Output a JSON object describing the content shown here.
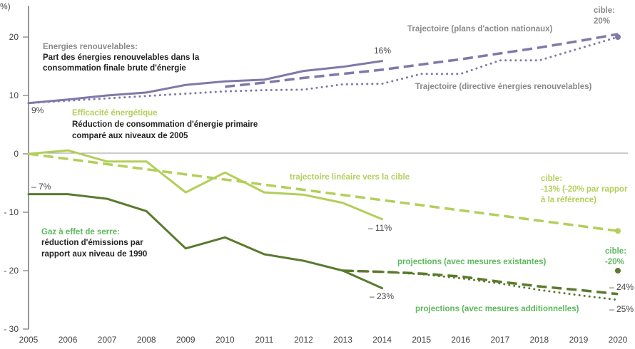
{
  "chart_data": {
    "type": "line",
    "title": "",
    "ylabel": "(%)",
    "xlabel": "",
    "ylim": [
      -30,
      25
    ],
    "xlim": [
      2005,
      2020
    ],
    "grid": false,
    "x_ticks": [
      "2005",
      "2006",
      "2007",
      "2008",
      "2009",
      "2010",
      "2011",
      "2012",
      "2013",
      "2014",
      "2015",
      "2016",
      "2017",
      "2018",
      "2019",
      "2020"
    ],
    "y_ticks": [
      {
        "value": 20,
        "label": "20"
      },
      {
        "value": 10,
        "label": "10"
      },
      {
        "value": 0,
        "label": "0"
      },
      {
        "value": -10,
        "label": "- 10"
      },
      {
        "value": -20,
        "label": "- 20"
      },
      {
        "value": -30,
        "label": "- 30"
      }
    ],
    "colors": {
      "renewables": "#8078a8",
      "efficiency": "#b2cf5a",
      "ghg": "#5a7a2e",
      "ghg_label": "#5cb85c",
      "dark_text": "#222222",
      "grey_text": "#888888",
      "axis": "#777777"
    },
    "series": [
      {
        "name": "Part des énergies renouvelables (réalisé)",
        "group": "renewables",
        "style": "solid",
        "x": [
          2005,
          2006,
          2007,
          2008,
          2009,
          2010,
          2011,
          2012,
          2013,
          2014
        ],
        "y": [
          8.7,
          9.3,
          10.0,
          10.5,
          11.8,
          12.4,
          12.7,
          14.2,
          14.9,
          15.9
        ]
      },
      {
        "name": "Trajectoire (plans d'action nationaux)",
        "group": "renewables",
        "style": "dash",
        "x": [
          2010,
          2011,
          2012,
          2013,
          2014,
          2015,
          2016,
          2017,
          2018,
          2019,
          2020
        ],
        "y": [
          11.5,
          12.2,
          13.0,
          13.7,
          14.4,
          15.3,
          16.2,
          17.2,
          18.2,
          19.3,
          20.5
        ]
      },
      {
        "name": "Trajectoire (directive énergies renouvelables)",
        "group": "renewables",
        "style": "dot",
        "x": [
          2005,
          2006,
          2007,
          2008,
          2009,
          2010,
          2011,
          2012,
          2013,
          2014,
          2015,
          2016,
          2017,
          2018,
          2019,
          2020
        ],
        "y": [
          8.7,
          9.1,
          9.5,
          9.9,
          10.3,
          10.7,
          10.9,
          11.0,
          11.9,
          12.0,
          13.7,
          13.7,
          16.0,
          16.0,
          18.0,
          20.0
        ]
      },
      {
        "name": "Efficacité énergétique (réalisé)",
        "group": "efficiency",
        "style": "solid",
        "x": [
          2005,
          2006,
          2007,
          2008,
          2009,
          2010,
          2011,
          2012,
          2013,
          2014
        ],
        "y": [
          0,
          0.6,
          -1.3,
          -1.3,
          -6.6,
          -3.2,
          -6.6,
          -7.0,
          -8.4,
          -11.2
        ]
      },
      {
        "name": "trajectoire linéaire vers la cible",
        "group": "efficiency",
        "style": "dash",
        "x": [
          2005,
          2020
        ],
        "y": [
          0,
          -13.2
        ]
      },
      {
        "name": "Gaz à effet de serre (réalisé)",
        "group": "ghg",
        "style": "solid",
        "x": [
          2005,
          2006,
          2007,
          2008,
          2009,
          2010,
          2011,
          2012,
          2013,
          2014
        ],
        "y": [
          -6.9,
          -6.9,
          -7.7,
          -9.8,
          -16.2,
          -14.3,
          -17.2,
          -18.3,
          -20.0,
          -23.0
        ]
      },
      {
        "name": "projections (avec mesures existantes)",
        "group": "ghg",
        "style": "dash",
        "x": [
          2013,
          2014,
          2015,
          2016,
          2017,
          2018,
          2019,
          2020
        ],
        "y": [
          -20.0,
          -20.2,
          -20.5,
          -21.0,
          -21.9,
          -22.7,
          -23.3,
          -24.0
        ]
      },
      {
        "name": "projections (avec mesures additionnelles)",
        "group": "ghg",
        "style": "dot",
        "x": [
          2013,
          2014,
          2015,
          2016,
          2017,
          2018,
          2019,
          2020
        ],
        "y": [
          -20.0,
          -20.2,
          -20.6,
          -21.3,
          -22.2,
          -23.3,
          -24.2,
          -25.0
        ]
      }
    ],
    "markers": [
      {
        "name": "cible énergies renouvelables",
        "x": 2020,
        "y": 20,
        "group": "renewables"
      },
      {
        "name": "cible efficacité énergétique",
        "x": 2020,
        "y": -13.2,
        "group": "efficiency"
      },
      {
        "name": "cible gaz à effet de serre",
        "x": 2020,
        "y": -20,
        "group": "ghg"
      }
    ],
    "annotations": {
      "unit": "(%)",
      "ren_title": "Energies renouvelables:",
      "ren_desc_1": "Part des énergies renouvelables dans la",
      "ren_desc_2": "consommation finale brute d'énergie",
      "ren_start": "9%",
      "ren_end": "16%",
      "ren_traj_nat": "Trajectoire (plans d'action nationaux)",
      "ren_traj_dir": "Trajectoire (directive énergies renouvelables)",
      "ren_target_1": "cible:",
      "ren_target_2": "20%",
      "eff_title": "Efficacité énergétique",
      "eff_desc_1": "Réduction de consommation d'énergie primaire",
      "eff_desc_2": "comparé aux niveaux de 2005",
      "eff_traj": "trajectoire linéaire vers la cible",
      "eff_end": "– 11%",
      "eff_target_1": "cible:",
      "eff_target_2": "-13% (-20% par rappor",
      "eff_target_3": "à la référence)",
      "ghg_title": "Gaz à effet de serre:",
      "ghg_desc_1": "réduction d'émissions par",
      "ghg_desc_2": "rapport aux niveau de 1990",
      "ghg_start": "– 7%",
      "ghg_end": "– 23%",
      "ghg_proj_exist": "projections (avec mesures existantes)",
      "ghg_proj_add": "projections (avec mesures additionnelles)",
      "ghg_target_1": "cible:",
      "ghg_target_2": "-20%",
      "ghg_end_exist": "– 24%",
      "ghg_end_add": "– 25%"
    }
  }
}
